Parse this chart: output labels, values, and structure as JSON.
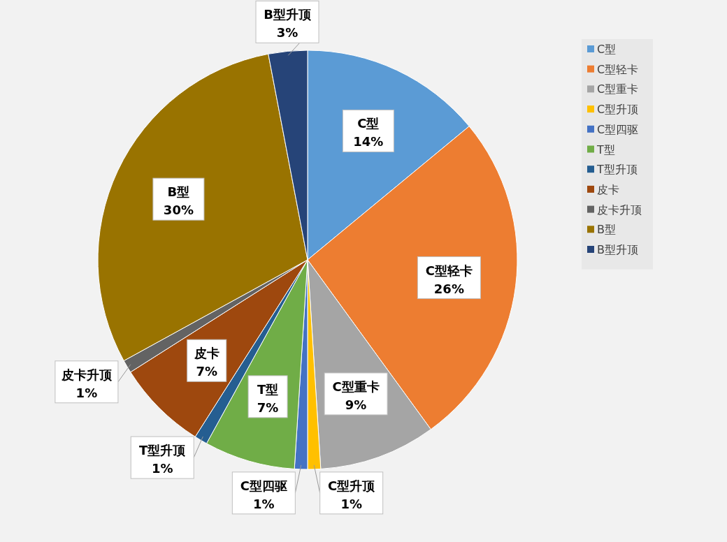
{
  "chart_data": {
    "type": "pie",
    "categories": [
      "C型",
      "C型轻卡",
      "C型重卡",
      "C型升顶",
      "C型四驱",
      "T型",
      "T型升顶",
      "皮卡",
      "皮卡升顶",
      "B型",
      "B型升顶"
    ],
    "values": [
      14,
      26,
      9,
      1,
      1,
      7,
      1,
      7,
      1,
      30,
      3
    ],
    "colors": [
      "#5b9bd5",
      "#ed7d31",
      "#a5a5a5",
      "#ffc000",
      "#4472c4",
      "#70ad47",
      "#255e91",
      "#9e480e",
      "#636363",
      "#997300",
      "#264478"
    ],
    "value_labels": [
      "14%",
      "26%",
      "9%",
      "1%",
      "1%",
      "7%",
      "1%",
      "7%",
      "1%",
      "30%",
      "3%"
    ],
    "legend": "right"
  }
}
